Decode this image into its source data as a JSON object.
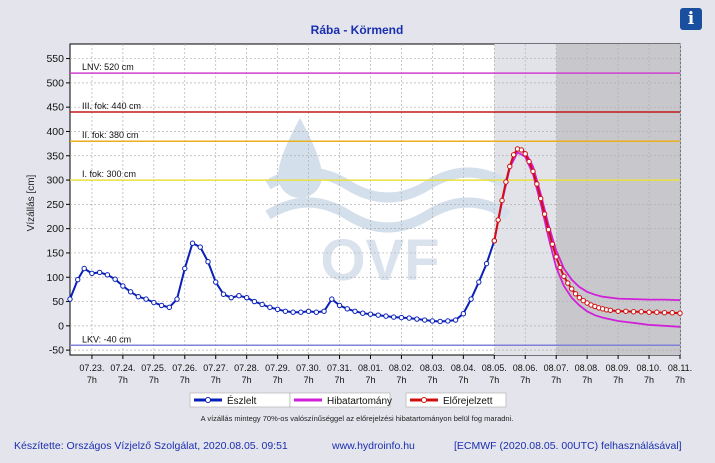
{
  "chart_data": {
    "type": "line",
    "title": "Rába - Körmend",
    "ylabel": "Vízállás [cm]",
    "xlabel": "",
    "ylim": [
      -60,
      580
    ],
    "yticks": [
      550,
      500,
      450,
      400,
      350,
      300,
      250,
      200,
      150,
      100,
      50,
      0,
      -50
    ],
    "xlim": [
      "2020-07-22 14:00",
      "2020-08-11 07:00"
    ],
    "x_tick_dates": [
      "07.23.",
      "07.24.",
      "07.25.",
      "07.26.",
      "07.27.",
      "07.28.",
      "07.29.",
      "07.30.",
      "07.31.",
      "08.01.",
      "08.02.",
      "08.03.",
      "08.04.",
      "08.05.",
      "08.06.",
      "08.07.",
      "08.08.",
      "08.09.",
      "08.10.",
      "08.11."
    ],
    "x_tick_hour": "7h",
    "grid": true,
    "legend_position": "bottom",
    "thresholds": [
      {
        "label": "LNV: 520 cm",
        "value": 520,
        "color": "#d040d0"
      },
      {
        "label": "III. fok: 440 cm",
        "value": 440,
        "color": "#c01818"
      },
      {
        "label": "II. fok: 380 cm",
        "value": 380,
        "color": "#e8b020"
      },
      {
        "label": "I. fok: 300 cm",
        "value": 300,
        "color": "#e8e040"
      },
      {
        "label": "LKV: -40 cm",
        "value": -40,
        "color": "#8080d8"
      }
    ],
    "forecast_start": "2020-08-05 07:00",
    "dark_zone_start": "2020-08-07 07:00",
    "series": [
      {
        "name": "Észlelt",
        "color": "#0a20b8",
        "points": [
          [
            "2020-07-22 14:00",
            55
          ],
          [
            "2020-07-22 20:00",
            95
          ],
          [
            "2020-07-23 01:00",
            118
          ],
          [
            "2020-07-23 07:00",
            108
          ],
          [
            "2020-07-23 13:00",
            110
          ],
          [
            "2020-07-23 19:00",
            105
          ],
          [
            "2020-07-24 01:00",
            96
          ],
          [
            "2020-07-24 07:00",
            82
          ],
          [
            "2020-07-24 13:00",
            70
          ],
          [
            "2020-07-24 19:00",
            60
          ],
          [
            "2020-07-25 01:00",
            55
          ],
          [
            "2020-07-25 07:00",
            48
          ],
          [
            "2020-07-25 13:00",
            42
          ],
          [
            "2020-07-25 19:00",
            38
          ],
          [
            "2020-07-26 01:00",
            55
          ],
          [
            "2020-07-26 07:00",
            118
          ],
          [
            "2020-07-26 13:00",
            170
          ],
          [
            "2020-07-26 19:00",
            162
          ],
          [
            "2020-07-27 01:00",
            132
          ],
          [
            "2020-07-27 07:00",
            90
          ],
          [
            "2020-07-27 13:00",
            65
          ],
          [
            "2020-07-27 19:00",
            58
          ],
          [
            "2020-07-28 01:00",
            62
          ],
          [
            "2020-07-28 07:00",
            58
          ],
          [
            "2020-07-28 13:00",
            50
          ],
          [
            "2020-07-28 19:00",
            44
          ],
          [
            "2020-07-29 01:00",
            38
          ],
          [
            "2020-07-29 07:00",
            34
          ],
          [
            "2020-07-29 13:00",
            30
          ],
          [
            "2020-07-29 19:00",
            28
          ],
          [
            "2020-07-30 01:00",
            28
          ],
          [
            "2020-07-30 07:00",
            30
          ],
          [
            "2020-07-30 13:00",
            28
          ],
          [
            "2020-07-30 19:00",
            30
          ],
          [
            "2020-07-31 01:00",
            55
          ],
          [
            "2020-07-31 07:00",
            42
          ],
          [
            "2020-07-31 13:00",
            35
          ],
          [
            "2020-07-31 19:00",
            30
          ],
          [
            "2020-08-01 01:00",
            26
          ],
          [
            "2020-08-01 07:00",
            24
          ],
          [
            "2020-08-01 13:00",
            22
          ],
          [
            "2020-08-01 19:00",
            20
          ],
          [
            "2020-08-02 01:00",
            18
          ],
          [
            "2020-08-02 07:00",
            17
          ],
          [
            "2020-08-02 13:00",
            16
          ],
          [
            "2020-08-02 19:00",
            14
          ],
          [
            "2020-08-03 01:00",
            12
          ],
          [
            "2020-08-03 07:00",
            10
          ],
          [
            "2020-08-03 13:00",
            9
          ],
          [
            "2020-08-03 19:00",
            10
          ],
          [
            "2020-08-04 01:00",
            12
          ],
          [
            "2020-08-04 07:00",
            25
          ],
          [
            "2020-08-04 13:00",
            55
          ],
          [
            "2020-08-04 19:00",
            90
          ],
          [
            "2020-08-05 01:00",
            128
          ],
          [
            "2020-08-05 07:00",
            175
          ]
        ]
      },
      {
        "name": "Hibatartomány",
        "color": "#d020d8",
        "upper": [
          [
            "2020-08-05 07:00",
            175
          ],
          [
            "2020-08-05 13:00",
            258
          ],
          [
            "2020-08-05 19:00",
            330
          ],
          [
            "2020-08-06 01:00",
            363
          ],
          [
            "2020-08-06 07:00",
            358
          ],
          [
            "2020-08-06 13:00",
            328
          ],
          [
            "2020-08-06 19:00",
            272
          ],
          [
            "2020-08-07 01:00",
            208
          ],
          [
            "2020-08-07 07:00",
            155
          ],
          [
            "2020-08-07 13:00",
            118
          ],
          [
            "2020-08-07 19:00",
            95
          ],
          [
            "2020-08-08 01:00",
            80
          ],
          [
            "2020-08-08 07:00",
            70
          ],
          [
            "2020-08-08 13:00",
            64
          ],
          [
            "2020-08-08 19:00",
            60
          ],
          [
            "2020-08-09 07:00",
            56
          ],
          [
            "2020-08-09 19:00",
            55
          ],
          [
            "2020-08-10 07:00",
            54
          ],
          [
            "2020-08-10 19:00",
            54
          ],
          [
            "2020-08-11 07:00",
            53
          ]
        ],
        "lower": [
          [
            "2020-08-05 07:00",
            175
          ],
          [
            "2020-08-05 13:00",
            255
          ],
          [
            "2020-08-05 19:00",
            325
          ],
          [
            "2020-08-06 01:00",
            357
          ],
          [
            "2020-08-06 07:00",
            348
          ],
          [
            "2020-08-06 13:00",
            312
          ],
          [
            "2020-08-06 19:00",
            252
          ],
          [
            "2020-08-07 01:00",
            182
          ],
          [
            "2020-08-07 07:00",
            120
          ],
          [
            "2020-08-07 13:00",
            82
          ],
          [
            "2020-08-07 19:00",
            58
          ],
          [
            "2020-08-08 01:00",
            42
          ],
          [
            "2020-08-08 07:00",
            30
          ],
          [
            "2020-08-08 13:00",
            22
          ],
          [
            "2020-08-08 19:00",
            17
          ],
          [
            "2020-08-09 07:00",
            10
          ],
          [
            "2020-08-09 19:00",
            6
          ],
          [
            "2020-08-10 07:00",
            2
          ],
          [
            "2020-08-10 19:00",
            0
          ],
          [
            "2020-08-11 07:00",
            -2
          ]
        ]
      },
      {
        "name": "Előrejelzett",
        "color": "#d01010",
        "points": [
          [
            "2020-08-05 07:00",
            175
          ],
          [
            "2020-08-05 10:00",
            218
          ],
          [
            "2020-08-05 13:00",
            258
          ],
          [
            "2020-08-05 16:00",
            296
          ],
          [
            "2020-08-05 19:00",
            328
          ],
          [
            "2020-08-05 22:00",
            352
          ],
          [
            "2020-08-06 01:00",
            364
          ],
          [
            "2020-08-06 04:00",
            362
          ],
          [
            "2020-08-06 07:00",
            354
          ],
          [
            "2020-08-06 10:00",
            338
          ],
          [
            "2020-08-06 13:00",
            318
          ],
          [
            "2020-08-06 16:00",
            292
          ],
          [
            "2020-08-06 19:00",
            262
          ],
          [
            "2020-08-06 22:00",
            230
          ],
          [
            "2020-08-07 01:00",
            198
          ],
          [
            "2020-08-07 04:00",
            168
          ],
          [
            "2020-08-07 07:00",
            142
          ],
          [
            "2020-08-07 10:00",
            120
          ],
          [
            "2020-08-07 13:00",
            102
          ],
          [
            "2020-08-07 16:00",
            88
          ],
          [
            "2020-08-07 19:00",
            76
          ],
          [
            "2020-08-07 22:00",
            66
          ],
          [
            "2020-08-08 01:00",
            58
          ],
          [
            "2020-08-08 04:00",
            52
          ],
          [
            "2020-08-08 07:00",
            47
          ],
          [
            "2020-08-08 10:00",
            43
          ],
          [
            "2020-08-08 13:00",
            40
          ],
          [
            "2020-08-08 16:00",
            37
          ],
          [
            "2020-08-08 19:00",
            35
          ],
          [
            "2020-08-08 22:00",
            33
          ],
          [
            "2020-08-09 01:00",
            32
          ],
          [
            "2020-08-09 07:00",
            30
          ],
          [
            "2020-08-09 13:00",
            30
          ],
          [
            "2020-08-09 19:00",
            29
          ],
          [
            "2020-08-10 01:00",
            29
          ],
          [
            "2020-08-10 07:00",
            28
          ],
          [
            "2020-08-10 13:00",
            28
          ],
          [
            "2020-08-10 19:00",
            27
          ],
          [
            "2020-08-11 01:00",
            27
          ],
          [
            "2020-08-11 07:00",
            26
          ]
        ]
      }
    ],
    "annotation": "A vízállás mintegy 70%-os valószínűséggel az előrejelzési hibatartományon belül fog maradni.",
    "watermark": "OVF"
  },
  "footer": {
    "made_by": "Készítette: Országos Vízjelző Szolgálat, 2020.08.05. 09:51",
    "website": "www.hydroinfo.hu",
    "model": "[ECMWF (2020.08.05. 00UTC) felhasználásával]"
  },
  "info_button": {
    "icon": "info-icon",
    "label": "i"
  },
  "colors": {
    "observed": "#0a20b8",
    "forecast": "#d01010",
    "error_band": "#d020d8",
    "forecast_zone": "#e2e3e8",
    "dark_zone": "#c8c8cc"
  }
}
